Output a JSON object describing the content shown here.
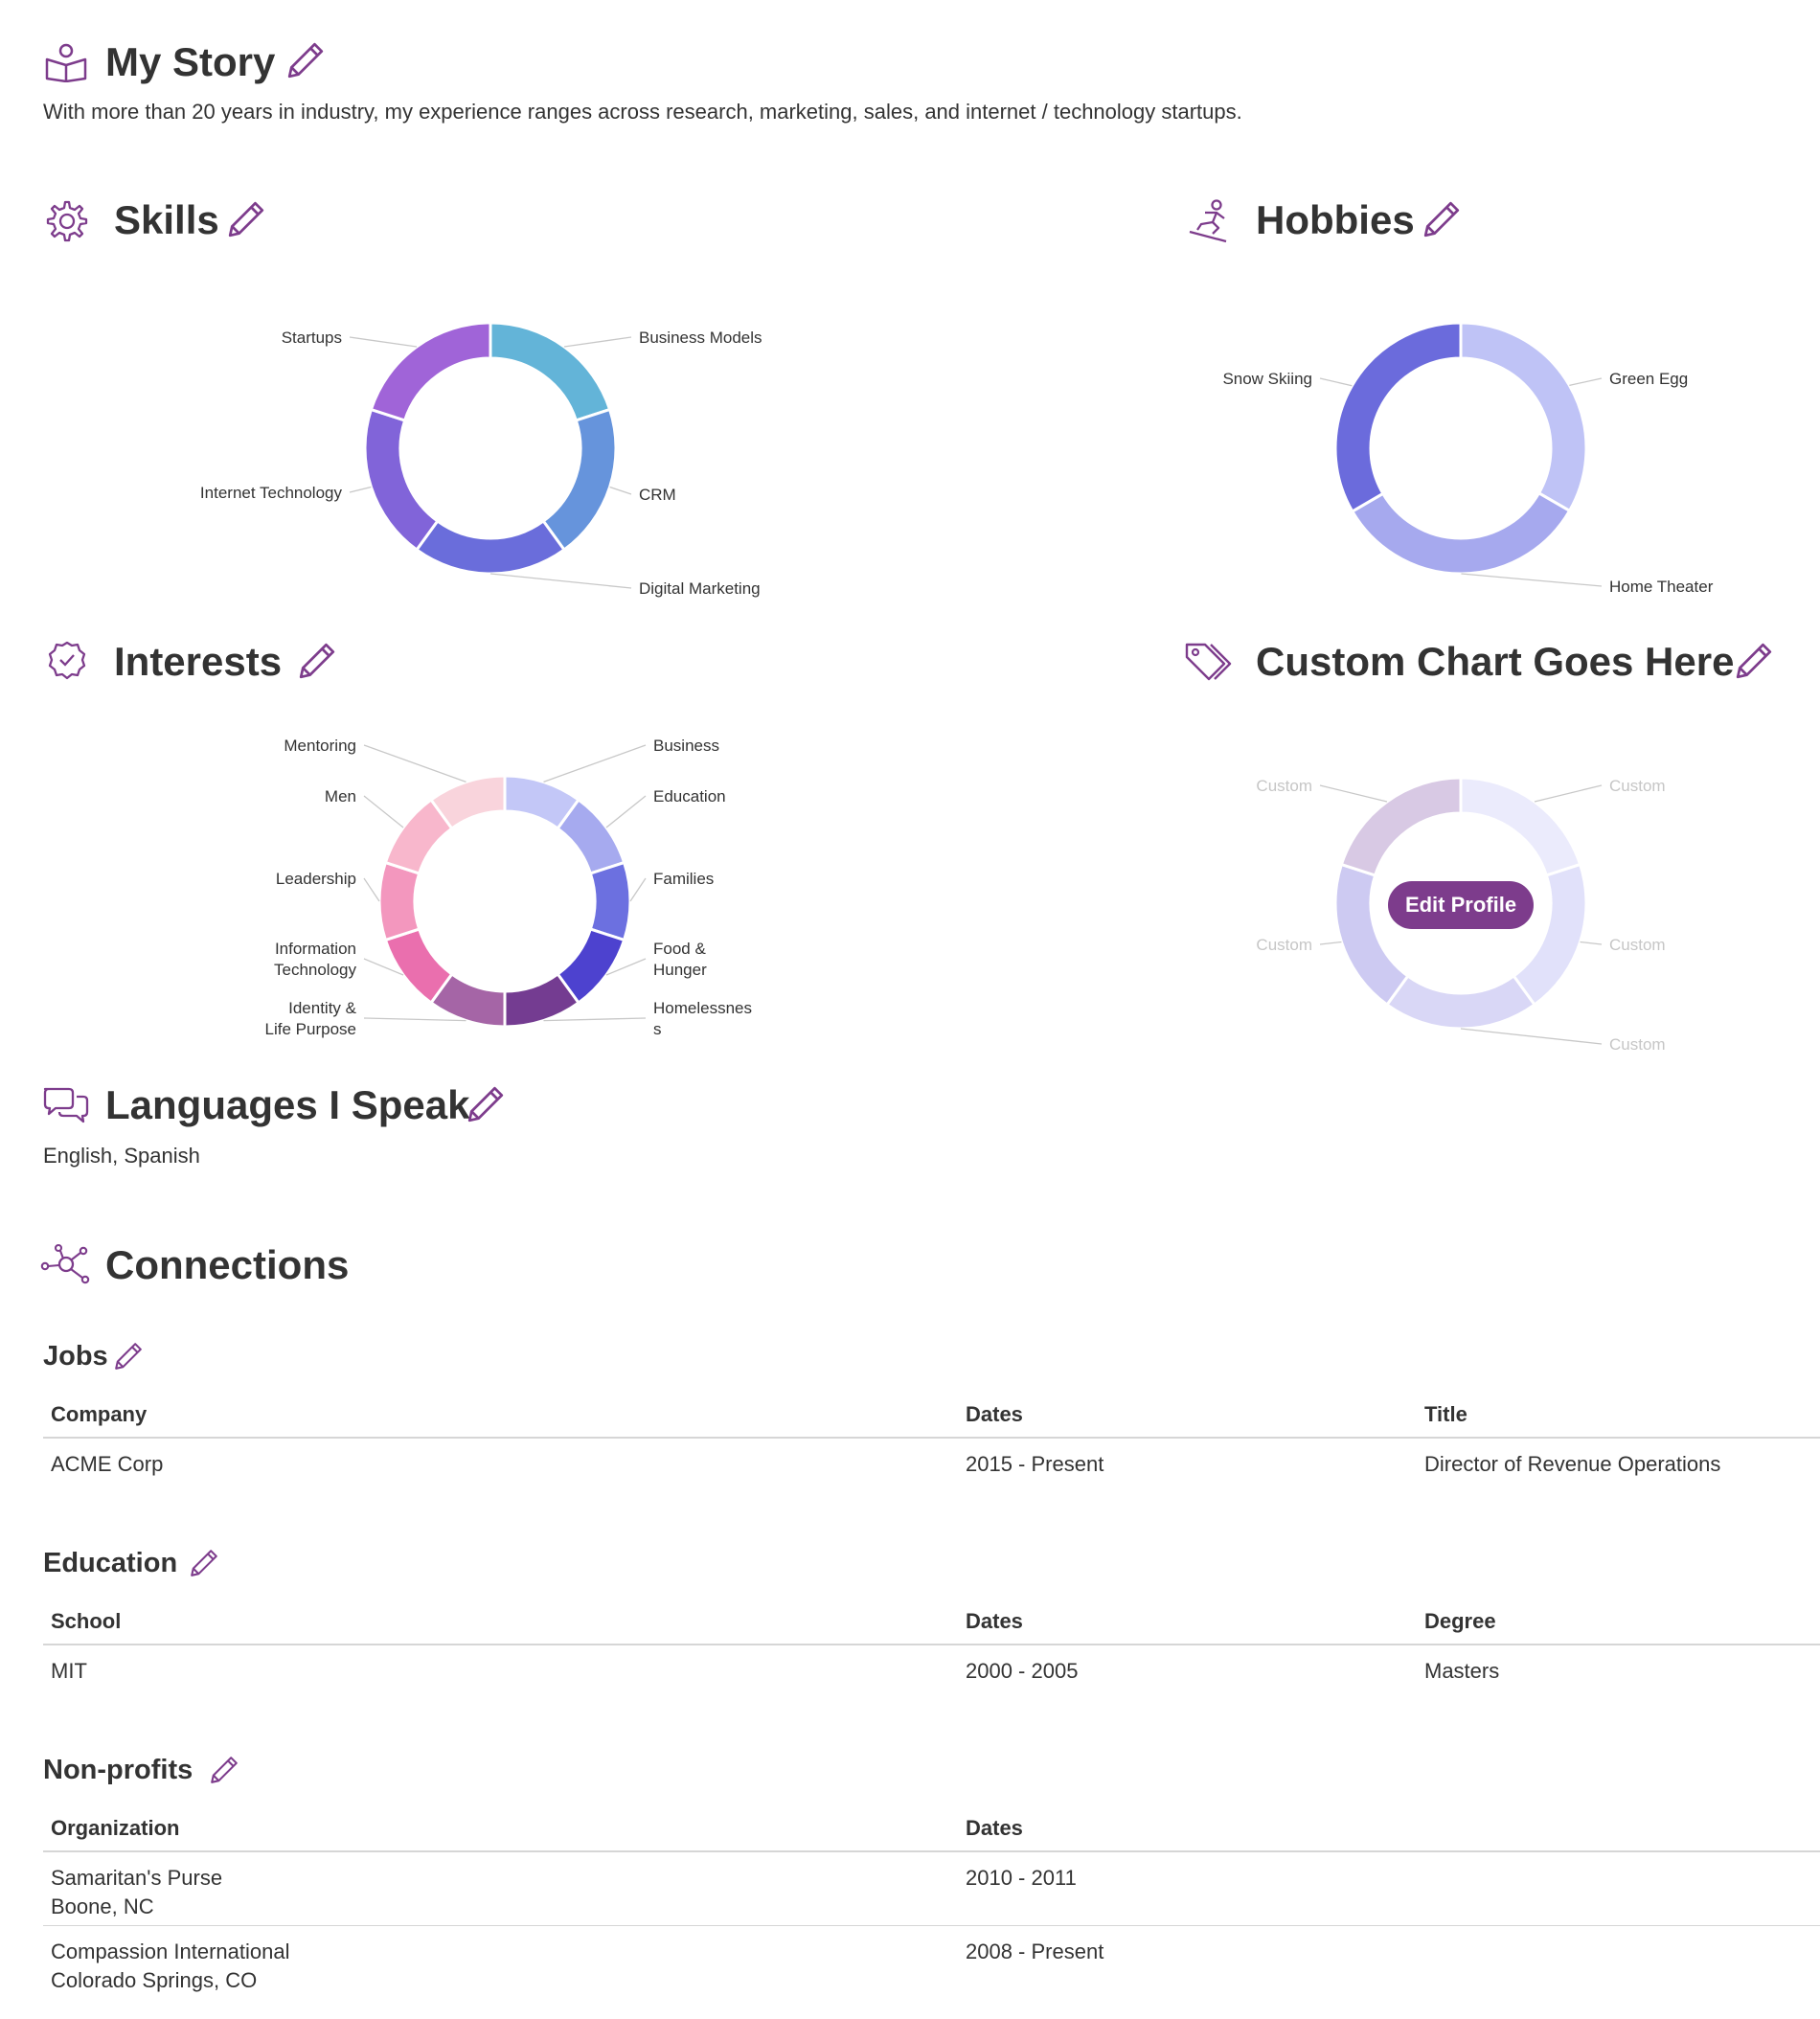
{
  "story": {
    "title": "My Story",
    "text": "With more than 20 years in industry, my experience ranges across research, marketing, sales, and internet / technology startups."
  },
  "skills": {
    "title": "Skills",
    "chart_data": {
      "type": "pie",
      "categories": [
        "Business Models",
        "CRM",
        "Digital Marketing",
        "Internet Technology",
        "Startups"
      ],
      "values": [
        20,
        20,
        20,
        20,
        20
      ],
      "colors": [
        "#63b4d8",
        "#6694dc",
        "#6a6ddb",
        "#8164d9",
        "#a064d8"
      ]
    }
  },
  "hobbies": {
    "title": "Hobbies",
    "chart_data": {
      "type": "pie",
      "categories": [
        "Green Egg",
        "Home Theater",
        "Snow Skiing"
      ],
      "values": [
        33.3,
        33.3,
        33.4
      ],
      "colors": [
        "#bfc3f6",
        "#a6a9ee",
        "#6b6bdc"
      ]
    }
  },
  "interests": {
    "title": "Interests",
    "chart_data": {
      "type": "pie",
      "categories": [
        "Business",
        "Education",
        "Families",
        "Food & Hunger",
        "Homelessness",
        "Identity & Life Purpose",
        "Information Technology",
        "Leadership",
        "Men",
        "Mentoring"
      ],
      "label_lines": [
        [
          "Business"
        ],
        [
          "Education"
        ],
        [
          "Families"
        ],
        [
          "Food &",
          "Hunger"
        ],
        [
          "Homelessnes",
          "s"
        ],
        [
          "Identity &",
          "Life Purpose"
        ],
        [
          "Information",
          "Technology"
        ],
        [
          "Leadership"
        ],
        [
          "Men"
        ],
        [
          "Mentoring"
        ]
      ],
      "values": [
        10,
        10,
        10,
        10,
        10,
        10,
        10,
        10,
        10,
        10
      ],
      "colors": [
        "#c3c7f7",
        "#a6aaef",
        "#6c70e0",
        "#4d42cf",
        "#743c91",
        "#a565a6",
        "#ea6fae",
        "#f397be",
        "#f8b7cc",
        "#f9d4dc"
      ]
    }
  },
  "custom": {
    "title": "Custom Chart Goes Here",
    "button_label": "Edit Profile",
    "chart_data": {
      "type": "pie",
      "categories": [
        "Custom",
        "Custom",
        "Custom",
        "Custom",
        "Custom"
      ],
      "values": [
        20,
        20,
        20,
        20,
        20
      ],
      "colors": [
        "#ebebfc",
        "#e1e1fa",
        "#d9d7f6",
        "#cdcaf2",
        "#d8c9e4"
      ]
    }
  },
  "languages": {
    "title": "Languages I Speak",
    "text": "English, Spanish"
  },
  "connections": {
    "title": "Connections",
    "jobs": {
      "title": "Jobs",
      "headers": [
        "Company",
        "Dates",
        "Title"
      ],
      "rows": [
        [
          "ACME Corp",
          "2015 - Present",
          "Director of Revenue Operations"
        ]
      ]
    },
    "education": {
      "title": "Education",
      "headers": [
        "School",
        "Dates",
        "Degree"
      ],
      "rows": [
        [
          "MIT",
          "2000 - 2005",
          "Masters"
        ]
      ]
    },
    "nonprofits": {
      "title": "Non-profits",
      "headers": [
        "Organization",
        "Dates"
      ],
      "rows": [
        {
          "name": "Samaritan's Purse",
          "location": "Boone, NC",
          "dates": "2010 - 2011"
        },
        {
          "name": "Compassion International",
          "location": "Colorado Springs, CO",
          "dates": "2008 - Present"
        }
      ]
    }
  },
  "theme": {
    "accent": "#7d3c8c",
    "text": "#333333",
    "rule": "#d6d6d6",
    "leader": "#c8c8c8"
  }
}
